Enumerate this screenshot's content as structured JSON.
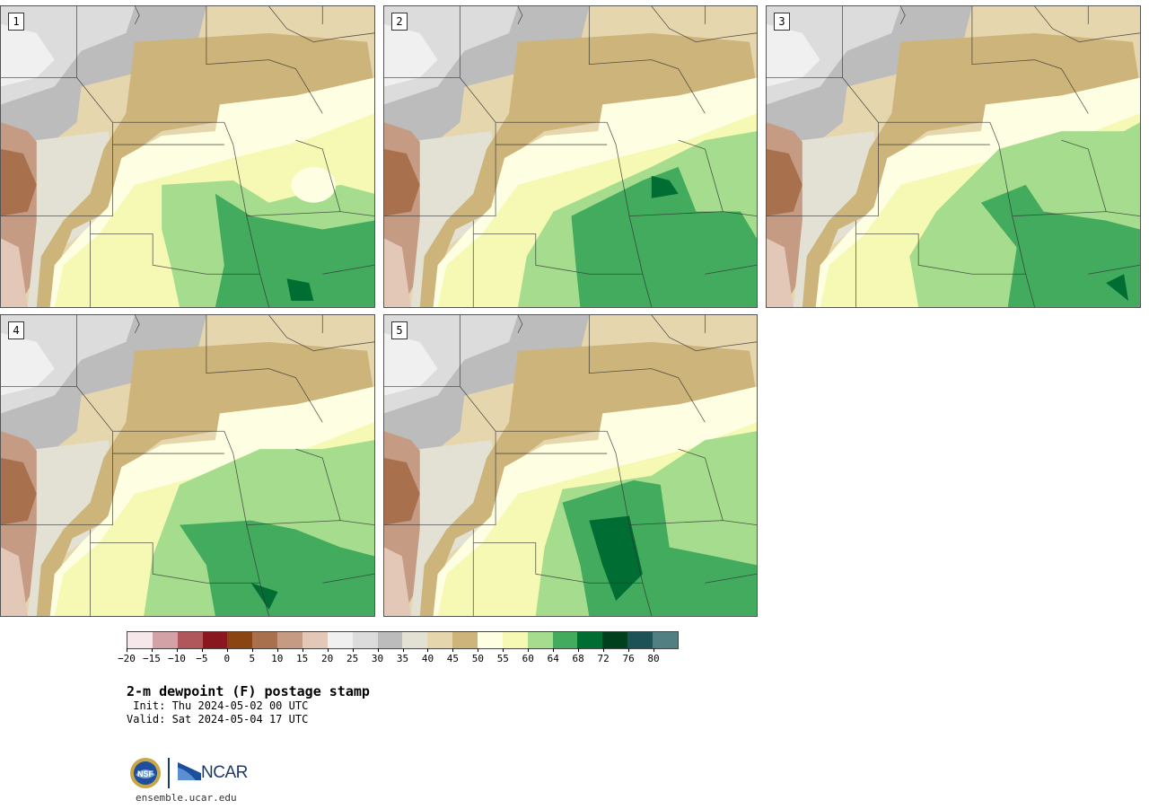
{
  "panels": [
    {
      "label": "1"
    },
    {
      "label": "2"
    },
    {
      "label": "3"
    },
    {
      "label": "4"
    },
    {
      "label": "5"
    }
  ],
  "colorbar": {
    "colors": [
      "#f6e7ea",
      "#d3a2a7",
      "#b0575c",
      "#8a1620",
      "#8a4513",
      "#a8704d",
      "#c59b83",
      "#e3c8b7",
      "#f0f0f0",
      "#dcdcdc",
      "#bcbcbc",
      "#e2e1d4",
      "#e6d6ad",
      "#cdb47a",
      "#fefee2",
      "#f5f9b3",
      "#a6dc8d",
      "#42ab5d",
      "#006d32",
      "#00401c",
      "#1d5357",
      "#527f81"
    ],
    "ticks": [
      "−20",
      "−15",
      "−10",
      "−5",
      "0",
      "5",
      "10",
      "15",
      "20",
      "25",
      "30",
      "35",
      "40",
      "45",
      "50",
      "55",
      "60",
      "64",
      "68",
      "72",
      "76",
      "80"
    ]
  },
  "title": "2-m dewpoint (F) postage stamp",
  "init": " Init: Thu 2024-05-02 00 UTC",
  "valid": "Valid: Sat 2024-05-04 17 UTC",
  "logos": {
    "ncar": "NCAR",
    "nsf_seal": "NSF"
  },
  "site": "ensemble.ucar.edu",
  "icons": [
    "nsf-logo-icon",
    "ncar-logo-icon"
  ]
}
